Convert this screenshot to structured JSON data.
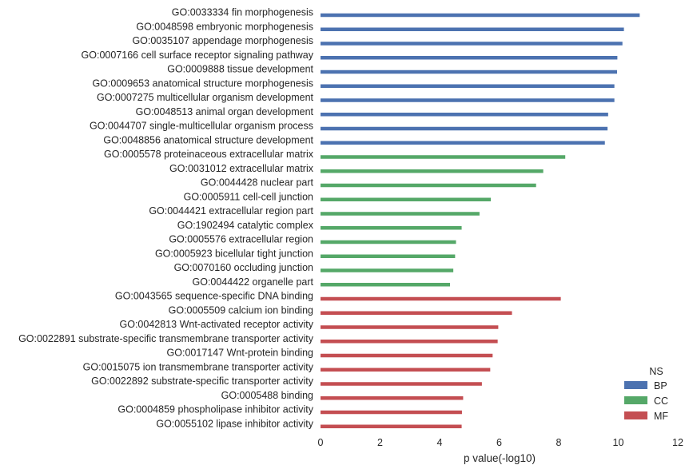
{
  "chart_data": {
    "type": "bar",
    "orientation": "horizontal",
    "title": "",
    "xlabel": "p value(-log10)",
    "ylabel": "",
    "xlim": [
      0,
      12
    ],
    "xticks": [
      "0",
      "2",
      "4",
      "6",
      "8",
      "10",
      "12"
    ],
    "grid": false,
    "legend": {
      "title": "NS",
      "placement": "bottom-right",
      "entries": [
        {
          "name": "BP",
          "color": "#4c72b0"
        },
        {
          "name": "CC",
          "color": "#55a868"
        },
        {
          "name": "MF",
          "color": "#c44e52"
        }
      ]
    },
    "categories": [
      "GO:0033334 fin morphogenesis",
      "GO:0048598 embryonic morphogenesis",
      "GO:0035107 appendage morphogenesis",
      "GO:0007166 cell surface receptor signaling pathway",
      "GO:0009888 tissue development",
      "GO:0009653 anatomical structure morphogenesis",
      "GO:0007275 multicellular organism development",
      "GO:0048513 animal organ development",
      "GO:0044707 single-multicellular organism process",
      "GO:0048856 anatomical structure development",
      "GO:0005578 proteinaceous extracellular matrix",
      "GO:0031012 extracellular matrix",
      "GO:0044428 nuclear part",
      "GO:0005911 cell-cell junction",
      "GO:0044421 extracellular region part",
      "GO:1902494 catalytic complex",
      "GO:0005576 extracellular region",
      "GO:0005923 bicellular tight junction",
      "GO:0070160 occluding junction",
      "GO:0044422 organelle part",
      "GO:0043565 sequence-specific DNA binding",
      "GO:0005509 calcium ion binding",
      "GO:0042813 Wnt-activated receptor activity",
      "GO:0022891 substrate-specific transmembrane transporter activity",
      "GO:0017147 Wnt-protein binding",
      "GO:0015075 ion transmembrane transporter activity",
      "GO:0022892 substrate-specific transporter activity",
      "GO:0005488 binding",
      "GO:0004859 phospholipase inhibitor activity",
      "GO:0055102 lipase inhibitor activity"
    ],
    "values": [
      10.72,
      10.19,
      10.14,
      9.97,
      9.96,
      9.87,
      9.87,
      9.66,
      9.64,
      9.55,
      8.22,
      7.48,
      7.24,
      5.72,
      5.34,
      4.74,
      4.55,
      4.52,
      4.46,
      4.35,
      8.07,
      6.43,
      5.97,
      5.95,
      5.78,
      5.7,
      5.42,
      4.79,
      4.75,
      4.74
    ],
    "groups": [
      "BP",
      "BP",
      "BP",
      "BP",
      "BP",
      "BP",
      "BP",
      "BP",
      "BP",
      "BP",
      "CC",
      "CC",
      "CC",
      "CC",
      "CC",
      "CC",
      "CC",
      "CC",
      "CC",
      "CC",
      "MF",
      "MF",
      "MF",
      "MF",
      "MF",
      "MF",
      "MF",
      "MF",
      "MF",
      "MF"
    ]
  }
}
